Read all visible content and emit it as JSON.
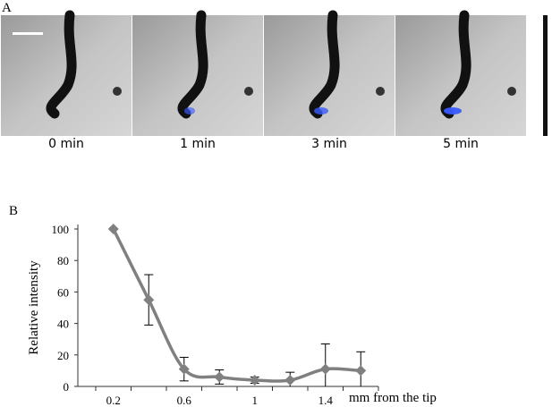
{
  "panel_a": {
    "label": "A",
    "times": [
      "0 min",
      "1 min",
      "3 min",
      "5 min"
    ]
  },
  "chart_data": {
    "type": "line",
    "panel_label": "B",
    "ylabel": "Relative intensity",
    "xlabel": "mm from the tip",
    "categories": [
      "0.2",
      null,
      "0.6",
      null,
      "1",
      null,
      "1.4",
      null
    ],
    "series": [
      {
        "color": "#808080",
        "values": [
          100,
          55,
          11,
          6,
          4,
          4,
          11,
          10
        ],
        "errors": [
          0,
          16,
          7.5,
          4.5,
          2,
          5,
          16,
          12
        ]
      }
    ],
    "ylim": [
      0,
      100
    ],
    "yticks": [
      0,
      20,
      40,
      60,
      80,
      100
    ]
  }
}
